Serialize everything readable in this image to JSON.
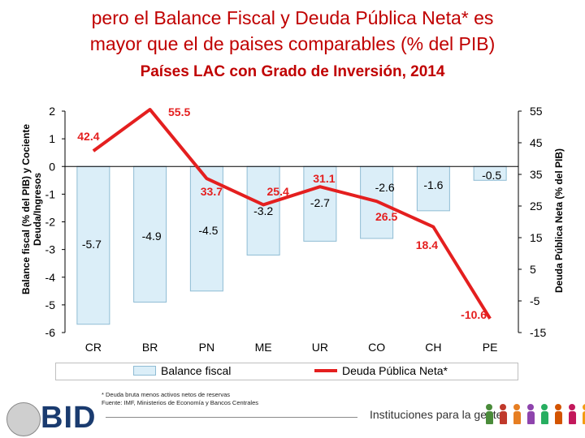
{
  "header": {
    "title_line1": "pero el Balance Fiscal y Deuda Pública Neta*  es",
    "title_line2": "mayor que el de paises comparables (% del PIB)",
    "subtitle": "Países LAC con Grado de Inversión, 2014"
  },
  "colors": {
    "title": "#c00000",
    "bar_fill": "#dbeef8",
    "bar_stroke": "#8fbcd4",
    "line": "#e41f1f",
    "label_red": "#e41f1f"
  },
  "chart_data": {
    "type": "bar+line",
    "categories": [
      "CR",
      "BR",
      "PN",
      "ME",
      "UR",
      "CO",
      "CH",
      "PE"
    ],
    "series": [
      {
        "name": "Balance fiscal",
        "type": "bar",
        "axis": "left",
        "values": [
          -5.7,
          -4.9,
          -4.5,
          -3.2,
          -2.7,
          -2.6,
          -1.6,
          -0.5
        ]
      },
      {
        "name": "Deuda Pública Neta*",
        "type": "line",
        "axis": "right",
        "values": [
          42.4,
          55.5,
          33.7,
          25.4,
          31.1,
          26.5,
          18.4,
          -10.6
        ]
      }
    ],
    "ylabel_left": "Balance fiscal (% del PIB) y Cociente Deuda/Ingresos",
    "ylabel_right": "Deuda Pública Neta (% del PIB)",
    "ylim_left": [
      -6,
      2
    ],
    "yticks_left": [
      2,
      1,
      0,
      -1,
      -2,
      -3,
      -4,
      -5,
      -6
    ],
    "ylim_right": [
      -15,
      55
    ],
    "yticks_right": [
      55,
      45,
      35,
      25,
      15,
      5,
      -5,
      -15
    ],
    "grid": false,
    "legend_position": "bottom"
  },
  "legend": {
    "bar_label": "Balance fiscal",
    "line_label": "Deuda Pública Neta*"
  },
  "footnotes": {
    "line1": "* Deuda bruta menos activos netos de reservas",
    "line2": "Fuente: IMF, Ministerios de Economía y Bancos Centrales"
  },
  "branding": {
    "logo_text": "BID",
    "tagline": "Instituciones para la gente",
    "people_colors": [
      "#4a8b3a",
      "#c0392b",
      "#e67e22",
      "#8e44ad",
      "#27ae60",
      "#d35400",
      "#c2185b",
      "#f39c12"
    ]
  }
}
